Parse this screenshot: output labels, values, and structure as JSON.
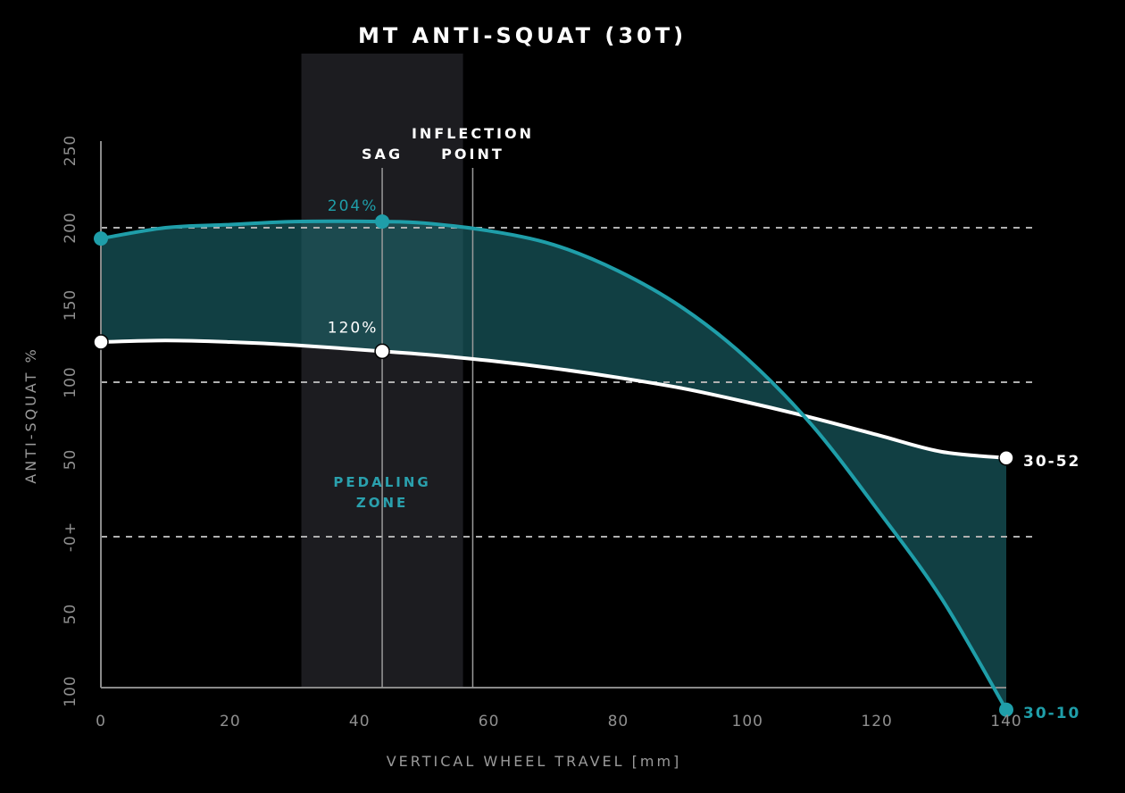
{
  "chart_data": {
    "type": "line",
    "title": "MT ANTI-SQUAT (30T)",
    "xlabel": "VERTICAL WHEEL TRAVEL [mm]",
    "ylabel": "ANTI-SQUAT %",
    "xlim": [
      0,
      140
    ],
    "ylim": [
      -100,
      250
    ],
    "x_ticks": [
      0,
      20,
      40,
      60,
      80,
      100,
      120,
      140
    ],
    "x_tick_labels": [
      "0",
      "20",
      "40",
      "60",
      "80",
      "100",
      "120",
      "140"
    ],
    "y_ticks": [
      250,
      200,
      150,
      100,
      50,
      0,
      -50,
      -100
    ],
    "y_tick_labels": [
      "250",
      "200",
      "150",
      "100",
      "50",
      "-0+",
      "50",
      "100"
    ],
    "reference_lines": [
      200,
      100,
      0
    ],
    "series": [
      {
        "name": "30-10",
        "color": "#1f9ea9",
        "x": [
          0,
          10,
          20,
          30,
          43.5,
          50,
          60,
          70,
          80,
          90,
          100,
          110,
          120,
          130,
          140
        ],
        "y": [
          193,
          200,
          202,
          204,
          204,
          203,
          198,
          189,
          172,
          148,
          115,
          72,
          18,
          -40,
          -112
        ]
      },
      {
        "name": "30-52",
        "color": "#ffffff",
        "x": [
          0,
          10,
          20,
          30,
          43.5,
          50,
          60,
          70,
          80,
          90,
          100,
          110,
          120,
          130,
          140
        ],
        "y": [
          126,
          127,
          126,
          124,
          120,
          118,
          114,
          109,
          103,
          96,
          87,
          77,
          66,
          55,
          51
        ]
      }
    ],
    "markers": [
      {
        "series": "30-10",
        "x": 0,
        "y": 193
      },
      {
        "series": "30-10",
        "x": 43.5,
        "y": 204
      },
      {
        "series": "30-10",
        "x": 140,
        "y": -112
      },
      {
        "series": "30-52",
        "x": 0,
        "y": 126
      },
      {
        "series": "30-52",
        "x": 43.5,
        "y": 120
      },
      {
        "series": "30-52",
        "x": 140,
        "y": 51
      }
    ],
    "annotations": {
      "value_labels": [
        {
          "text": "204%",
          "series": "30-10",
          "x": 43.5
        },
        {
          "text": "120%",
          "series": "30-52",
          "x": 43.5
        }
      ],
      "end_labels": [
        {
          "text": "30-52",
          "series": "30-52"
        },
        {
          "text": "30-10",
          "series": "30-10"
        }
      ],
      "vertical_markers": [
        {
          "label": "SAG",
          "x": 43.5
        },
        {
          "label_lines": [
            "INFLECTION",
            "POINT"
          ],
          "x": 57.5
        }
      ],
      "zone": {
        "label_lines": [
          "PEDALING",
          "ZONE"
        ],
        "x_range": [
          31,
          56
        ]
      }
    },
    "grid": false,
    "legend": "none"
  }
}
